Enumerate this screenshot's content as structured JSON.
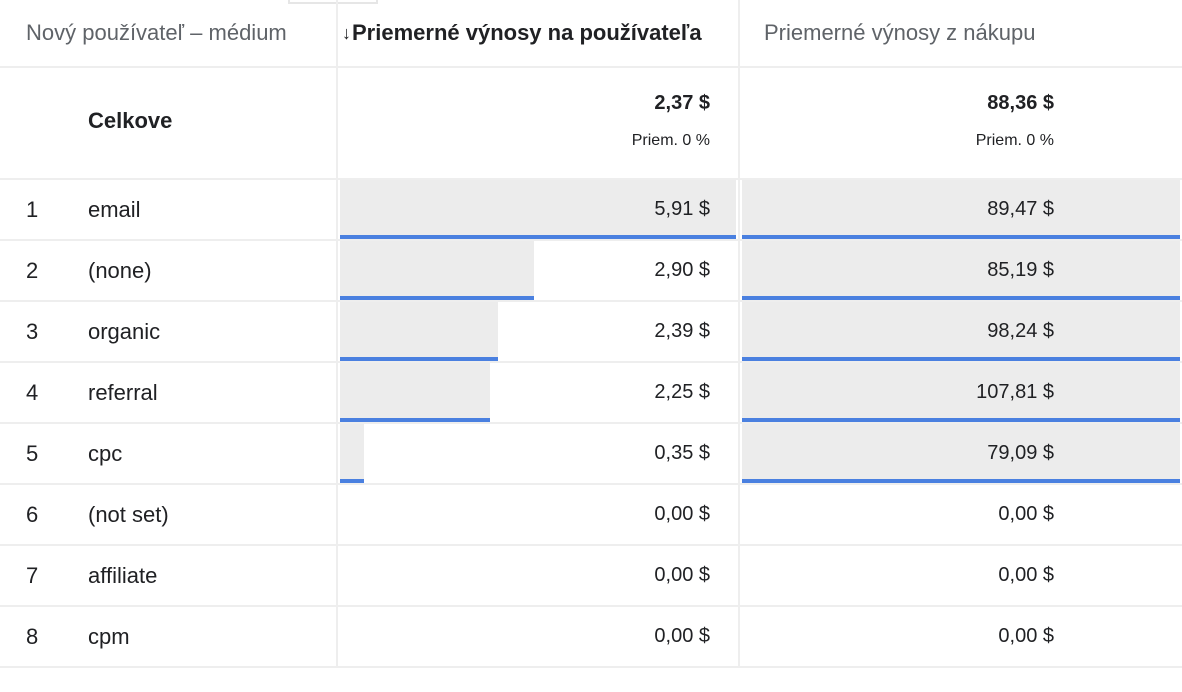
{
  "header": {
    "dimension": "Nový používateľ – médium",
    "metric1": "Priemerné výnosy na používateľa",
    "metric2": "Priemerné výnosy z nákupu",
    "sort_icon": "↓"
  },
  "totals": {
    "label": "Celkove",
    "metric1": {
      "value": "2,37 $",
      "sub": "Priem. 0 %"
    },
    "metric2": {
      "value": "88,36 $",
      "sub": "Priem. 0 %"
    }
  },
  "rows": [
    {
      "index": "1",
      "label": "email",
      "metric1": "5,91 $",
      "metric2": "89,47 $",
      "m1_share": 1.0,
      "m2_share": 1.0
    },
    {
      "index": "2",
      "label": "(none)",
      "metric1": "2,90 $",
      "metric2": "85,19 $",
      "m1_share": 0.49,
      "m2_share": 1.0
    },
    {
      "index": "3",
      "label": "organic",
      "metric1": "2,39 $",
      "metric2": "98,24 $",
      "m1_share": 0.4,
      "m2_share": 1.0
    },
    {
      "index": "4",
      "label": "referral",
      "metric1": "2,25 $",
      "metric2": "107,81 $",
      "m1_share": 0.38,
      "m2_share": 1.0
    },
    {
      "index": "5",
      "label": "cpc",
      "metric1": "0,35 $",
      "metric2": "79,09 $",
      "m1_share": 0.06,
      "m2_share": 1.0
    },
    {
      "index": "6",
      "label": "(not set)",
      "metric1": "0,00 $",
      "metric2": "0,00 $",
      "m1_share": 0,
      "m2_share": 0
    },
    {
      "index": "7",
      "label": "affiliate",
      "metric1": "0,00 $",
      "metric2": "0,00 $",
      "m1_share": 0,
      "m2_share": 0
    },
    {
      "index": "8",
      "label": "cpm",
      "metric1": "0,00 $",
      "metric2": "0,00 $",
      "m1_share": 0,
      "m2_share": 0
    }
  ],
  "colors": {
    "bar_fill": "#ececec",
    "bar_line": "#4a80e0",
    "grid": "#eeeeee"
  }
}
